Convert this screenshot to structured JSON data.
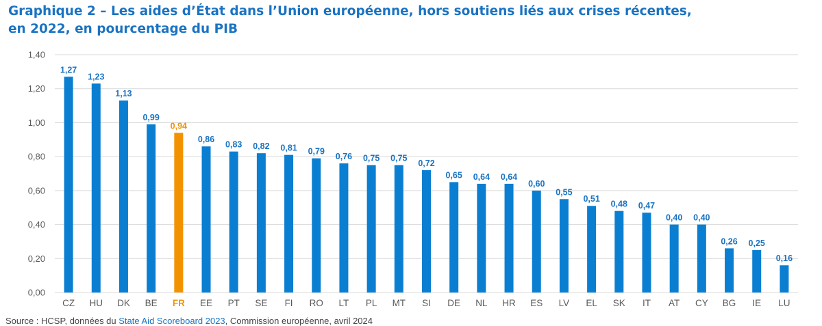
{
  "title": {
    "line1": "Graphique 2 – Les aides d’État dans l’Union européenne, hors soutiens liés aux crises récentes,",
    "line2": "en 2022, en pourcentage du PIB"
  },
  "source": {
    "prefix": "Source : HCSP, données du ",
    "link": "State Aid Scoreboard 2023",
    "suffix": ", Commission européenne, avril 2024"
  },
  "colors": {
    "title": "#1a73c2",
    "bar": "#0a7fd2",
    "highlight": "#f39200",
    "label": "#1a73c2",
    "highlight_label": "#f39200",
    "grid": "#d9d9d9",
    "axis_text": "#595959"
  },
  "chart_data": {
    "type": "bar",
    "categories": [
      "CZ",
      "HU",
      "DK",
      "BE",
      "FR",
      "EE",
      "PT",
      "SE",
      "FI",
      "RO",
      "LT",
      "PL",
      "MT",
      "SI",
      "DE",
      "NL",
      "HR",
      "ES",
      "LV",
      "EL",
      "SK",
      "IT",
      "AT",
      "CY",
      "BG",
      "IE",
      "LU"
    ],
    "values": [
      1.27,
      1.23,
      1.13,
      0.99,
      0.94,
      0.86,
      0.83,
      0.82,
      0.81,
      0.79,
      0.76,
      0.75,
      0.75,
      0.72,
      0.65,
      0.64,
      0.64,
      0.6,
      0.55,
      0.51,
      0.48,
      0.47,
      0.4,
      0.4,
      0.26,
      0.25,
      0.16
    ],
    "value_labels": [
      "1,27",
      "1,23",
      "1,13",
      "0,99",
      "0,94",
      "0,86",
      "0,83",
      "0,82",
      "0,81",
      "0,79",
      "0,76",
      "0,75",
      "0,75",
      "0,72",
      "0,65",
      "0,64",
      "0,64",
      "0,60",
      "0,55",
      "0,51",
      "0,48",
      "0,47",
      "0,40",
      "0,40",
      "0,26",
      "0,25",
      "0,16"
    ],
    "highlight": "FR",
    "ylim": [
      0,
      1.4
    ],
    "yticks": [
      0,
      0.2,
      0.4,
      0.6,
      0.8,
      1.0,
      1.2,
      1.4
    ],
    "ytick_labels": [
      "0,00",
      "0,20",
      "0,40",
      "0,60",
      "0,80",
      "1,00",
      "1,20",
      "1,40"
    ],
    "grid": true,
    "xlabel": "",
    "ylabel": ""
  }
}
